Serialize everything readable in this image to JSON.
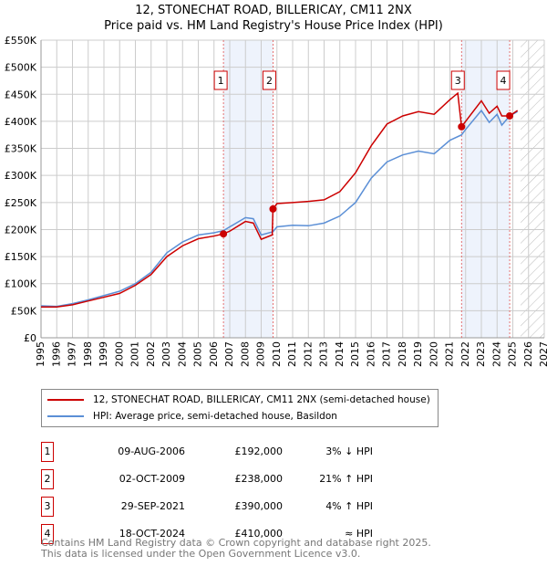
{
  "chart_data": {
    "type": "line",
    "title": "12, STONECHAT ROAD, BILLERICAY, CM11 2NX",
    "subtitle": "Price paid vs. HM Land Registry's House Price Index (HPI)",
    "xlim": [
      1995,
      2027
    ],
    "ylim": [
      0,
      550000
    ],
    "x_ticks": [
      "1995",
      "1996",
      "1997",
      "1998",
      "1999",
      "2000",
      "2001",
      "2002",
      "2003",
      "2004",
      "2005",
      "2006",
      "2007",
      "2008",
      "2009",
      "2010",
      "2011",
      "2012",
      "2013",
      "2014",
      "2015",
      "2016",
      "2017",
      "2018",
      "2019",
      "2020",
      "2021",
      "2022",
      "2023",
      "2024",
      "2025",
      "2026",
      "2027"
    ],
    "y_ticks": [
      {
        "v": 0,
        "label": "£0"
      },
      {
        "v": 50000,
        "label": "£50K"
      },
      {
        "v": 100000,
        "label": "£100K"
      },
      {
        "v": 150000,
        "label": "£150K"
      },
      {
        "v": 200000,
        "label": "£200K"
      },
      {
        "v": 250000,
        "label": "£250K"
      },
      {
        "v": 300000,
        "label": "£300K"
      },
      {
        "v": 350000,
        "label": "£350K"
      },
      {
        "v": 400000,
        "label": "£400K"
      },
      {
        "v": 450000,
        "label": "£450K"
      },
      {
        "v": 500000,
        "label": "£500K"
      },
      {
        "v": 550000,
        "label": "£550K"
      }
    ],
    "grid": true,
    "series": [
      {
        "name": "12, STONECHAT ROAD, BILLERICAY, CM11 2NX (semi-detached house)",
        "color": "#cc0000",
        "x": [
          1995,
          1996,
          1997,
          1998,
          1999,
          2000,
          2001,
          2002,
          2003,
          2004,
          2005,
          2006,
          2006.6,
          2007,
          2008,
          2008.5,
          2009,
          2009.7,
          2009.75,
          2010,
          2011,
          2012,
          2013,
          2014,
          2015,
          2016,
          2017,
          2018,
          2019,
          2020,
          2021,
          2021.5,
          2021.74,
          2022,
          2023,
          2023.5,
          2024,
          2024.3,
          2024.8,
          2025.3
        ],
        "y": [
          57000,
          57000,
          61000,
          68000,
          75000,
          82000,
          97000,
          117000,
          150000,
          170000,
          183000,
          188000,
          192000,
          197000,
          215000,
          212000,
          182000,
          190000,
          238000,
          248000,
          250000,
          252000,
          255000,
          270000,
          305000,
          355000,
          395000,
          410000,
          418000,
          413000,
          440000,
          452000,
          390000,
          400000,
          438000,
          415000,
          428000,
          410000,
          410000,
          420000
        ]
      },
      {
        "name": "HPI: Average price, semi-detached house, Basildon",
        "color": "#5b8fd6",
        "x": [
          1995,
          1996,
          1997,
          1998,
          1999,
          2000,
          2001,
          2002,
          2003,
          2004,
          2005,
          2006,
          2006.6,
          2007,
          2008,
          2008.5,
          2009,
          2009.75,
          2010,
          2011,
          2012,
          2013,
          2014,
          2015,
          2016,
          2017,
          2018,
          2019,
          2020,
          2021,
          2021.74,
          2022,
          2023,
          2023.5,
          2024,
          2024.3,
          2024.8,
          2025.3
        ],
        "y": [
          59000,
          58000,
          63000,
          70000,
          78000,
          86000,
          100000,
          121000,
          157000,
          177000,
          190000,
          194000,
          198000,
          205000,
          222000,
          220000,
          190000,
          196000,
          205000,
          208000,
          207000,
          212000,
          225000,
          250000,
          295000,
          325000,
          338000,
          345000,
          340000,
          365000,
          375000,
          385000,
          420000,
          398000,
          413000,
          393000,
          410000,
          418000
        ]
      }
    ],
    "sales": [
      {
        "n": "1",
        "x": 2006.6,
        "y": 192000
      },
      {
        "n": "2",
        "x": 2009.75,
        "y": 238000
      },
      {
        "n": "3",
        "x": 2021.74,
        "y": 390000
      },
      {
        "n": "4",
        "x": 2024.8,
        "y": 410000
      }
    ],
    "shaded_ranges": [
      [
        2006.6,
        2009.75
      ],
      [
        2021.74,
        2024.8
      ]
    ],
    "forecast_hatch_from": 2025.5,
    "legend_position": "below"
  },
  "table": [
    {
      "n": "1",
      "date": "09-AUG-2006",
      "price": "£192,000",
      "hpi": "3% ↓ HPI"
    },
    {
      "n": "2",
      "date": "02-OCT-2009",
      "price": "£238,000",
      "hpi": "21% ↑ HPI"
    },
    {
      "n": "3",
      "date": "29-SEP-2021",
      "price": "£390,000",
      "hpi": "4% ↑ HPI"
    },
    {
      "n": "4",
      "date": "18-OCT-2024",
      "price": "£410,000",
      "hpi": "≈ HPI"
    }
  ],
  "footer": {
    "line1": "Contains HM Land Registry data © Crown copyright and database right 2025.",
    "line2": "This data is licensed under the Open Government Licence v3.0."
  }
}
